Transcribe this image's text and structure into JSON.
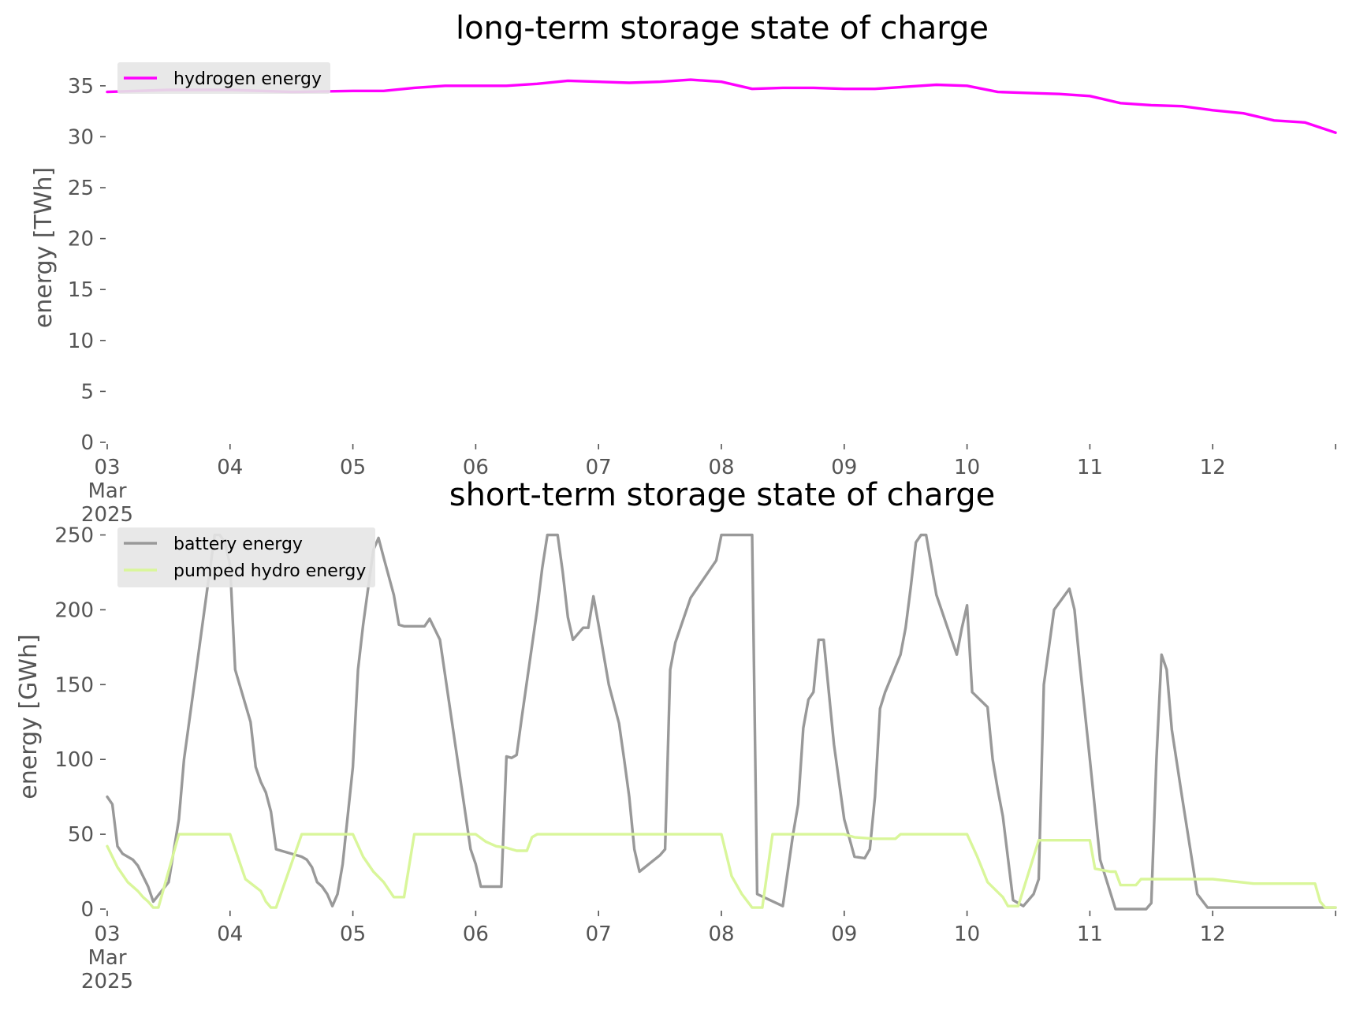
{
  "chart_data": [
    {
      "type": "line",
      "title": "long-term storage state of charge",
      "ylabel": "energy [TWh]",
      "xlabel": "",
      "ylim": [
        0,
        37
      ],
      "yticks": [
        0,
        5,
        10,
        15,
        20,
        25,
        30,
        35
      ],
      "xlim": [
        "2025-03-03",
        "2025-03-13"
      ],
      "xtick_labels": [
        "03\nMar\n2025",
        "04",
        "05",
        "06",
        "07",
        "08",
        "09",
        "10",
        "11",
        "12",
        ""
      ],
      "legend_position": "top-left",
      "series": [
        {
          "name": "hydrogen energy",
          "color": "#ff00ff",
          "x": [
            "2025-03-03T00:00",
            "2025-03-03T12:00",
            "2025-03-04T00:00",
            "2025-03-04T12:00",
            "2025-03-05T00:00",
            "2025-03-05T06:00",
            "2025-03-05T12:00",
            "2025-03-05T18:00",
            "2025-03-06T00:00",
            "2025-03-06T06:00",
            "2025-03-06T12:00",
            "2025-03-06T18:00",
            "2025-03-07T00:00",
            "2025-03-07T06:00",
            "2025-03-07T12:00",
            "2025-03-07T18:00",
            "2025-03-08T00:00",
            "2025-03-08T06:00",
            "2025-03-08T12:00",
            "2025-03-08T18:00",
            "2025-03-09T00:00",
            "2025-03-09T06:00",
            "2025-03-09T12:00",
            "2025-03-09T18:00",
            "2025-03-10T00:00",
            "2025-03-10T06:00",
            "2025-03-10T12:00",
            "2025-03-10T18:00",
            "2025-03-11T00:00",
            "2025-03-11T06:00",
            "2025-03-11T12:00",
            "2025-03-11T18:00",
            "2025-03-12T00:00",
            "2025-03-12T06:00",
            "2025-03-12T12:00",
            "2025-03-12T18:00",
            "2025-03-13T00:00"
          ],
          "y": [
            34.4,
            34.6,
            34.6,
            34.4,
            34.5,
            34.5,
            34.8,
            35.0,
            35.0,
            35.0,
            35.2,
            35.5,
            35.4,
            35.3,
            35.4,
            35.6,
            35.4,
            34.7,
            34.8,
            34.8,
            34.7,
            34.7,
            34.9,
            35.1,
            35.0,
            34.4,
            34.3,
            34.2,
            34.0,
            33.3,
            33.1,
            33.0,
            32.6,
            32.3,
            31.6,
            31.4,
            30.4
          ]
        }
      ]
    },
    {
      "type": "line",
      "title": "short-term storage state of charge",
      "ylabel": "energy [GWh]",
      "xlabel": "",
      "ylim": [
        0,
        255
      ],
      "yticks": [
        0,
        50,
        100,
        150,
        200,
        250
      ],
      "xlim": [
        "2025-03-03",
        "2025-03-13"
      ],
      "xtick_labels": [
        "03\nMar\n2025",
        "04",
        "05",
        "06",
        "07",
        "08",
        "09",
        "10",
        "11",
        "12",
        ""
      ],
      "legend_position": "top-left",
      "series": [
        {
          "name": "battery energy",
          "color": "#999999",
          "x": [
            "2025-03-03T00:00",
            "2025-03-03T01:00",
            "2025-03-03T02:00",
            "2025-03-03T03:00",
            "2025-03-03T05:00",
            "2025-03-03T06:00",
            "2025-03-03T08:00",
            "2025-03-03T09:00",
            "2025-03-03T12:00",
            "2025-03-03T14:00",
            "2025-03-03T15:00",
            "2025-03-03T17:00",
            "2025-03-03T19:00",
            "2025-03-03T21:00",
            "2025-03-03T22:00",
            "2025-03-03T23:00",
            "2025-03-04T00:00",
            "2025-03-04T01:00",
            "2025-03-04T04:00",
            "2025-03-04T05:00",
            "2025-03-04T06:00",
            "2025-03-04T07:00",
            "2025-03-04T08:00",
            "2025-03-04T09:00",
            "2025-03-04T14:00",
            "2025-03-04T15:00",
            "2025-03-04T16:00",
            "2025-03-04T17:00",
            "2025-03-04T18:00",
            "2025-03-04T19:00",
            "2025-03-04T20:00",
            "2025-03-04T21:00",
            "2025-03-04T22:00",
            "2025-03-05T00:00",
            "2025-03-05T01:00",
            "2025-03-05T02:00",
            "2025-03-05T04:00",
            "2025-03-05T05:00",
            "2025-03-05T06:00",
            "2025-03-05T08:00",
            "2025-03-05T09:00",
            "2025-03-05T10:00",
            "2025-03-05T14:00",
            "2025-03-05T15:00",
            "2025-03-05T17:00",
            "2025-03-05T23:00",
            "2025-03-06T00:00",
            "2025-03-06T01:00",
            "2025-03-06T03:00",
            "2025-03-06T05:00",
            "2025-03-06T06:00",
            "2025-03-06T07:00",
            "2025-03-06T08:00",
            "2025-03-06T09:00",
            "2025-03-06T12:00",
            "2025-03-06T13:00",
            "2025-03-06T14:00",
            "2025-03-06T15:00",
            "2025-03-06T16:00",
            "2025-03-06T17:00",
            "2025-03-06T18:00",
            "2025-03-06T19:00",
            "2025-03-06T21:00",
            "2025-03-06T22:00",
            "2025-03-06T23:00",
            "2025-03-07T00:00",
            "2025-03-07T02:00",
            "2025-03-07T04:00",
            "2025-03-07T05:00",
            "2025-03-07T06:00",
            "2025-03-07T07:00",
            "2025-03-07T08:00",
            "2025-03-07T12:00",
            "2025-03-07T13:00",
            "2025-03-07T14:00",
            "2025-03-07T15:00",
            "2025-03-07T18:00",
            "2025-03-07T23:00",
            "2025-03-08T00:00",
            "2025-03-08T06:00",
            "2025-03-08T07:00",
            "2025-03-08T12:00",
            "2025-03-08T14:00",
            "2025-03-08T15:00",
            "2025-03-08T16:00",
            "2025-03-08T17:00",
            "2025-03-08T18:00",
            "2025-03-08T19:00",
            "2025-03-08T20:00",
            "2025-03-08T21:00",
            "2025-03-08T22:00",
            "2025-03-09T00:00",
            "2025-03-09T02:00",
            "2025-03-09T04:00",
            "2025-03-09T05:00",
            "2025-03-09T06:00",
            "2025-03-09T07:00",
            "2025-03-09T08:00",
            "2025-03-09T11:00",
            "2025-03-09T12:00",
            "2025-03-09T13:00",
            "2025-03-09T14:00",
            "2025-03-09T15:00",
            "2025-03-09T16:00",
            "2025-03-09T18:00",
            "2025-03-09T20:00",
            "2025-03-09T22:00",
            "2025-03-09T23:00",
            "2025-03-10T00:00",
            "2025-03-10T01:00",
            "2025-03-10T04:00",
            "2025-03-10T05:00",
            "2025-03-10T06:00",
            "2025-03-10T07:00",
            "2025-03-10T09:00",
            "2025-03-10T11:00",
            "2025-03-10T13:00",
            "2025-03-10T14:00",
            "2025-03-10T15:00",
            "2025-03-10T17:00",
            "2025-03-10T20:00",
            "2025-03-10T21:00",
            "2025-03-10T22:00",
            "2025-03-11T00:00",
            "2025-03-11T02:00",
            "2025-03-11T05:00",
            "2025-03-11T07:00",
            "2025-03-11T09:00",
            "2025-03-11T11:00",
            "2025-03-11T12:00",
            "2025-03-11T13:00",
            "2025-03-11T14:00",
            "2025-03-11T15:00",
            "2025-03-11T16:00",
            "2025-03-11T18:00",
            "2025-03-11T21:00",
            "2025-03-11T23:00",
            "2025-03-12T00:00",
            "2025-03-12T06:00",
            "2025-03-12T18:00",
            "2025-03-12T22:00",
            "2025-03-13T00:00"
          ],
          "y": [
            75,
            70,
            42,
            37,
            33,
            29,
            15,
            5,
            18,
            60,
            100,
            150,
            200,
            250,
            250,
            245,
            230,
            160,
            125,
            95,
            85,
            78,
            65,
            40,
            35,
            33,
            28,
            18,
            15,
            10,
            2,
            10,
            30,
            95,
            160,
            190,
            240,
            248,
            235,
            210,
            190,
            189,
            189,
            194,
            180,
            40,
            30,
            15,
            15,
            15,
            102,
            101,
            103,
            128,
            200,
            228,
            250,
            250,
            250,
            225,
            195,
            180,
            188,
            188,
            209,
            190,
            150,
            124,
            100,
            75,
            40,
            25,
            36,
            40,
            160,
            178,
            208,
            233,
            250,
            250,
            10,
            2,
            50,
            70,
            121,
            140,
            145,
            180,
            180,
            145,
            110,
            60,
            35,
            34,
            40,
            75,
            134,
            145,
            170,
            188,
            215,
            245,
            250,
            250,
            210,
            190,
            170,
            188,
            203,
            145,
            135,
            100,
            80,
            62,
            6,
            2,
            10,
            20,
            150,
            200,
            214,
            200,
            165,
            100,
            33,
            0,
            0,
            0,
            0,
            4,
            100,
            170,
            160,
            120,
            75,
            10,
            1,
            1,
            1,
            1,
            1,
            1
          ]
        },
        {
          "name": "pumped hydro energy",
          "color": "#d9f69a",
          "x": [
            "2025-03-03T00:00",
            "2025-03-03T02:00",
            "2025-03-03T04:00",
            "2025-03-03T06:00",
            "2025-03-03T07:00",
            "2025-03-03T08:00",
            "2025-03-03T09:00",
            "2025-03-03T10:00",
            "2025-03-03T14:00",
            "2025-03-04T00:00",
            "2025-03-04T03:00",
            "2025-03-04T06:00",
            "2025-03-04T07:00",
            "2025-03-04T08:00",
            "2025-03-04T09:00",
            "2025-03-04T14:00",
            "2025-03-05T00:00",
            "2025-03-05T02:00",
            "2025-03-05T04:00",
            "2025-03-05T06:00",
            "2025-03-05T08:00",
            "2025-03-05T10:00",
            "2025-03-05T12:00",
            "2025-03-05T14:00",
            "2025-03-06T00:00",
            "2025-03-06T02:00",
            "2025-03-06T04:00",
            "2025-03-06T06:00",
            "2025-03-06T08:00",
            "2025-03-06T10:00",
            "2025-03-06T11:00",
            "2025-03-06T12:00",
            "2025-03-06T14:00",
            "2025-03-07T00:00",
            "2025-03-08T00:00",
            "2025-03-08T02:00",
            "2025-03-08T04:00",
            "2025-03-08T06:00",
            "2025-03-08T07:00",
            "2025-03-08T08:00",
            "2025-03-08T10:00",
            "2025-03-08T14:00",
            "2025-03-09T00:00",
            "2025-03-09T02:00",
            "2025-03-09T06:00",
            "2025-03-09T10:00",
            "2025-03-09T11:00",
            "2025-03-10T00:00",
            "2025-03-10T02:00",
            "2025-03-10T04:00",
            "2025-03-10T07:00",
            "2025-03-10T08:00",
            "2025-03-10T10:00",
            "2025-03-10T14:00",
            "2025-03-10T23:00",
            "2025-03-11T00:00",
            "2025-03-11T01:00",
            "2025-03-11T04:00",
            "2025-03-11T05:00",
            "2025-03-11T06:00",
            "2025-03-11T09:00",
            "2025-03-11T10:00",
            "2025-03-12T00:00",
            "2025-03-12T08:00",
            "2025-03-12T20:00",
            "2025-03-12T21:00",
            "2025-03-12T22:00",
            "2025-03-13T00:00"
          ],
          "y": [
            42,
            28,
            18,
            12,
            8,
            5,
            1,
            1,
            50,
            50,
            20,
            12,
            5,
            1,
            1,
            50,
            50,
            35,
            25,
            18,
            8,
            8,
            50,
            50,
            50,
            45,
            42,
            41,
            39,
            39,
            48,
            50,
            50,
            50,
            50,
            22,
            10,
            1,
            1,
            1,
            50,
            50,
            50,
            48,
            47,
            47,
            50,
            50,
            35,
            18,
            8,
            2,
            2,
            46,
            46,
            46,
            27,
            25,
            25,
            16,
            16,
            20,
            20,
            17,
            17,
            5,
            1,
            1
          ]
        }
      ]
    }
  ]
}
